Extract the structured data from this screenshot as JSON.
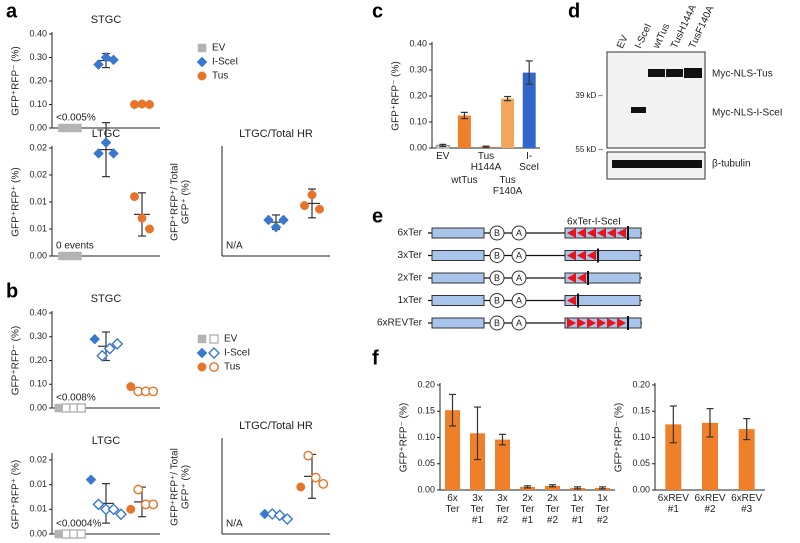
{
  "panels": [
    "a",
    "b",
    "c",
    "d",
    "e",
    "f"
  ],
  "chart_data": [
    {
      "type": "dot",
      "title": "STGC",
      "ylabel": [
        "GFP⁺RFP⁻ (%)"
      ],
      "ylim": [
        0,
        0.4
      ],
      "yticks": [
        {
          "value": 0,
          "label": "0.00"
        },
        {
          "value": 0.1,
          "label": "0.10"
        },
        {
          "value": 0.2,
          "label": "0.20"
        },
        {
          "value": 0.3,
          "label": "0.30"
        },
        {
          "value": 0.4,
          "label": "0.40"
        }
      ],
      "annotation": "<0.005%",
      "legend": true,
      "series": [
        {
          "name": "EV",
          "color": "#b3b3b3",
          "marker": "square",
          "values": [
            0,
            0,
            0
          ]
        },
        {
          "name": "I-SceI",
          "color": "#3a78d0",
          "marker": "diamond",
          "values": [
            0.27,
            0.3,
            0.29
          ],
          "mean": 0.287,
          "error": 0.03
        },
        {
          "name": "Tus",
          "color": "#e8732a",
          "marker": "circle",
          "values": [
            0.1,
            0.102,
            0.1
          ]
        }
      ]
    },
    {
      "type": "dot",
      "title": "LTGC",
      "ylabel": [
        "GFP⁺RFP⁺ (%)"
      ],
      "ylim": [
        0,
        0.02
      ],
      "yticks": [
        {
          "value": 0,
          "label": "0.00"
        },
        {
          "value": 0.005,
          "label": "0.01"
        },
        {
          "value": 0.01,
          "label": "0.01"
        },
        {
          "value": 0.015,
          "label": "0.02"
        },
        {
          "value": 0.02,
          "label": "0.02"
        }
      ],
      "annotation": "0 events",
      "series": [
        {
          "color": "#b3b3b3",
          "marker": "square",
          "values": [
            0,
            0,
            0
          ]
        },
        {
          "color": "#3a78d0",
          "marker": "diamond",
          "values": [
            0.019,
            0.021,
            0.019
          ],
          "mean": 0.0197,
          "error": 0.005
        },
        {
          "color": "#e8732a",
          "marker": "circle",
          "values": [
            0.011,
            0.007,
            0.005
          ],
          "mean": 0.0077,
          "error": 0.004
        }
      ]
    },
    {
      "type": "dot",
      "title": "LTGC/Total HR",
      "ylabel": [
        "GFP⁺RFP⁺/ Total",
        "GFP⁺ (%)"
      ],
      "ylim": [
        0,
        15
      ],
      "annotation": "N/A",
      "series": [
        {
          "color": "#3a78d0",
          "marker": "diamond",
          "values": [
            5,
            4,
            5
          ],
          "mean": 4.7,
          "error": 1
        },
        {
          "color": "#e8732a",
          "marker": "circle",
          "values": [
            7,
            8.5,
            6.5
          ],
          "mean": 7.3,
          "error": 2
        }
      ]
    },
    {
      "type": "dot",
      "title": "STGC",
      "ylabel": [
        "GFP⁺RFP⁻ (%)"
      ],
      "ylim": [
        0,
        0.4
      ],
      "yticks": [
        {
          "value": 0,
          "label": "0.00"
        },
        {
          "value": 0.1,
          "label": "0.10"
        },
        {
          "value": 0.2,
          "label": "0.20"
        },
        {
          "value": 0.3,
          "label": "0.30"
        },
        {
          "value": 0.4,
          "label": "0.40"
        }
      ],
      "annotation": "<0.008%",
      "legend": true,
      "series": [
        {
          "name": "EV",
          "color": "#b3b3b3",
          "marker": "square",
          "values": [
            0
          ],
          "open_values": [
            0,
            0,
            0
          ]
        },
        {
          "name": "I-SceI",
          "color": "#3a78d0",
          "marker": "diamond",
          "values": [
            0.29
          ],
          "open_values": [
            0.22,
            0.25,
            0.27
          ],
          "mean": 0.26,
          "error": 0.06
        },
        {
          "name": "Tus",
          "color": "#e8732a",
          "marker": "circle",
          "values": [
            0.09
          ],
          "open_values": [
            0.07,
            0.07,
            0.07
          ]
        }
      ]
    },
    {
      "type": "dot",
      "title": "LTGC",
      "ylabel": [
        "GFP⁺RFP⁺ (%)"
      ],
      "ylim": [
        0,
        0.016
      ],
      "yticks": [
        {
          "value": 0,
          "label": "0.00"
        },
        {
          "value": 0.005,
          "label": "0.01"
        },
        {
          "value": 0.01,
          "label": "0.01"
        },
        {
          "value": 0.015,
          "label": "0.02"
        }
      ],
      "annotation": "<0.0004%",
      "series": [
        {
          "color": "#b3b3b3",
          "marker": "square",
          "values": [
            0
          ],
          "open_values": [
            0,
            0,
            0
          ]
        },
        {
          "color": "#3a78d0",
          "marker": "diamond",
          "values": [
            0.011
          ],
          "open_values": [
            0.006,
            0.005,
            0.005,
            0.004
          ],
          "mean": 0.0062,
          "error": 0.004
        },
        {
          "color": "#e8732a",
          "marker": "circle",
          "values": [
            0.005
          ],
          "open_values": [
            0.009,
            0.006,
            0.006
          ],
          "mean": 0.0065,
          "error": 0.003
        }
      ]
    },
    {
      "type": "dot",
      "title": "LTGC/Total HR",
      "ylabel": [
        "GFP⁺RFP⁺/ Total",
        "GFP⁺ (%)"
      ],
      "ylim": [
        0,
        15
      ],
      "annotation": "N/A",
      "series": [
        {
          "color": "#3a78d0",
          "marker": "diamond",
          "values": [
            3.2
          ],
          "open_values": [
            3.2,
            3,
            2.4
          ]
        },
        {
          "color": "#e8732a",
          "marker": "circle",
          "values": [
            7.5
          ],
          "open_values": [
            12.5,
            9,
            8
          ],
          "mean": 9.2,
          "error": 3.5
        }
      ]
    },
    {
      "type": "bar",
      "ylabel": [
        "GFP⁺RFP⁻ (%)"
      ],
      "ylim": [
        0,
        0.4
      ],
      "yticks": [
        {
          "value": 0,
          "label": "0.00"
        },
        {
          "value": 0.1,
          "label": "0.10"
        },
        {
          "value": 0.2,
          "label": "0.20"
        },
        {
          "value": 0.3,
          "label": "0.30"
        },
        {
          "value": 0.4,
          "label": "0.40"
        }
      ],
      "categories": [
        "EV",
        "wtTus",
        "Tus H144A",
        "Tus F140A",
        "I-SceI"
      ],
      "values": [
        0.01,
        0.125,
        0.005,
        0.19,
        0.29
      ],
      "errors": [
        0.004,
        0.012,
        0.002,
        0.008,
        0.045
      ],
      "colors": [
        "#e6e6e6",
        "#f07f2a",
        "#f07f2a",
        "#f2a65a",
        "#3366cc"
      ]
    },
    {
      "type": "bar",
      "ylabel": [
        "GFP⁺RFP⁻ (%)"
      ],
      "ylim": [
        0,
        0.2
      ],
      "yticks": [
        {
          "value": 0,
          "label": "0.00"
        },
        {
          "value": 0.05,
          "label": "0.05"
        },
        {
          "value": 0.1,
          "label": "0.10"
        },
        {
          "value": 0.15,
          "label": "0.15"
        },
        {
          "value": 0.2,
          "label": "0.20"
        }
      ],
      "categories": [
        "6x Ter",
        "3x Ter #1",
        "3x Ter #2",
        "2x Ter #1",
        "2x Ter #2",
        "1x Ter #1",
        "1x Ter #2"
      ],
      "values": [
        0.152,
        0.108,
        0.096,
        0.006,
        0.008,
        0.004,
        0.004
      ],
      "errors": [
        0.03,
        0.05,
        0.01,
        0.002,
        0.002,
        0.002,
        0.002
      ],
      "color": "#f07f2a"
    },
    {
      "type": "bar",
      "ylabel": [
        "GFP⁺RFP⁻ (%)"
      ],
      "ylim": [
        0,
        0.2
      ],
      "yticks": [
        {
          "value": 0,
          "label": "0.00"
        },
        {
          "value": 0.05,
          "label": "0.05"
        },
        {
          "value": 0.1,
          "label": "0.10"
        },
        {
          "value": 0.15,
          "label": "0.15"
        },
        {
          "value": 0.2,
          "label": "0.20"
        }
      ],
      "categories": [
        "6xREV #1",
        "6xREV #2",
        "6xREV #3"
      ],
      "values": [
        0.125,
        0.128,
        0.116
      ],
      "errors": [
        0.035,
        0.027,
        0.02
      ],
      "color": "#f07f2a"
    }
  ],
  "blot": {
    "lanes": [
      "EV",
      "I-SceI",
      "wtTus",
      "TusH144A",
      "TusF140A"
    ],
    "markers": [
      "39 kD –",
      "55 kD –"
    ],
    "bands": [
      "Myc-NLS-Tus",
      "Myc-NLS-I-SceI",
      "β-tubulin"
    ]
  },
  "diagram": {
    "header": "6xTer-I-SceI",
    "rows": [
      "6xTer",
      "3xTer",
      "2xTer",
      "1xTer",
      "6xREVTer"
    ],
    "sites": [
      "B",
      "A"
    ]
  }
}
